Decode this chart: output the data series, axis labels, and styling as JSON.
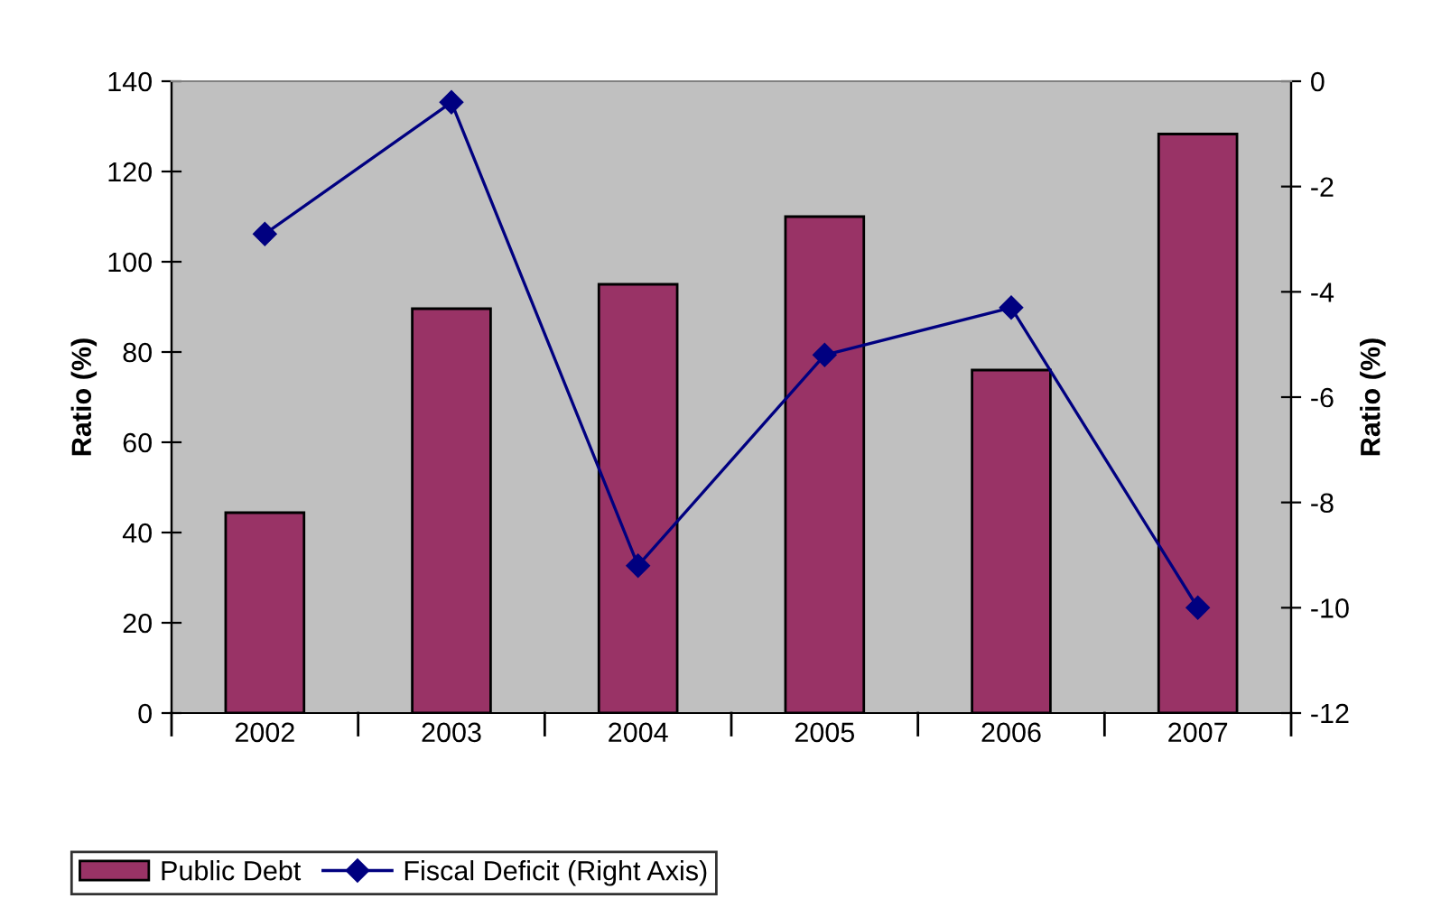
{
  "chart_data": {
    "type": "bar",
    "categories": [
      "2002",
      "2003",
      "2004",
      "2005",
      "2006",
      "2007"
    ],
    "series": [
      {
        "name": "Public Debt",
        "color": "#993366",
        "values": [
          44.4,
          89.6,
          95,
          110,
          76,
          128.3
        ]
      },
      {
        "name": "Fiscal Deficit (Right Axis)",
        "type": "line",
        "axis": "y2",
        "color": "#000080",
        "marker": "diamond",
        "values": [
          -2.9,
          -0.4,
          -9.2,
          -5.2,
          -4.3,
          -10.0
        ]
      }
    ],
    "ylabel": "Ratio (%)",
    "y2label": "Ratio (%)",
    "ylim": [
      0,
      140
    ],
    "yticks": [
      0,
      20,
      40,
      60,
      80,
      100,
      120,
      140
    ],
    "y2lim": [
      -12,
      0
    ],
    "y2ticks": [
      {
        "value": -12,
        "label": "-12"
      },
      {
        "value": -10,
        "label": "-10"
      },
      {
        "value": -8,
        "label": "-8"
      },
      {
        "value": -6,
        "label": "-6"
      },
      {
        "value": -4,
        "label": "-4"
      },
      {
        "value": -2,
        "label": "-2"
      },
      0
    ],
    "grid": false,
    "legend": "bottom left"
  }
}
